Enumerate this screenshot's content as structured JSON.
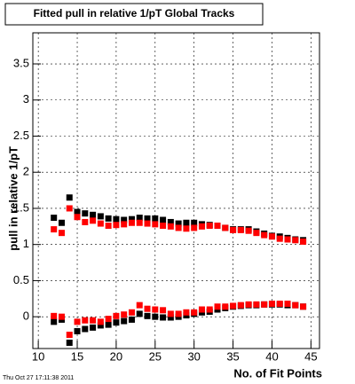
{
  "chart_data": {
    "type": "scatter",
    "title": "Fitted pull in relative 1/pT  Global Tracks",
    "x_label": "No. of Fit Points",
    "y_label": "pull in relative 1/pT",
    "footer": "Thu Oct 27 17:11:38 2011",
    "x": [
      12,
      13,
      14,
      15,
      16,
      17,
      18,
      19,
      20,
      21,
      22,
      23,
      24,
      25,
      26,
      27,
      28,
      29,
      30,
      31,
      32,
      33,
      34,
      35,
      36,
      37,
      38,
      39,
      40,
      41,
      42,
      43,
      44
    ],
    "series": [
      {
        "color": "#000000",
        "values": [
          1.37,
          1.3,
          1.65,
          1.45,
          1.43,
          1.41,
          1.39,
          1.36,
          1.35,
          1.34,
          1.35,
          1.37,
          1.36,
          1.36,
          1.34,
          1.31,
          1.29,
          1.3,
          1.3,
          1.28,
          1.27,
          1.26,
          1.23,
          1.21,
          1.21,
          1.21,
          1.18,
          1.15,
          1.12,
          1.11,
          1.09,
          1.07,
          1.06
        ]
      },
      {
        "color": "#ff0000",
        "values": [
          1.21,
          1.16,
          1.5,
          1.38,
          1.31,
          1.33,
          1.29,
          1.26,
          1.27,
          1.28,
          1.3,
          1.3,
          1.29,
          1.28,
          1.26,
          1.25,
          1.23,
          1.22,
          1.23,
          1.25,
          1.26,
          1.26,
          1.23,
          1.2,
          1.2,
          1.19,
          1.16,
          1.13,
          1.11,
          1.08,
          1.07,
          1.06,
          1.04
        ]
      },
      {
        "color": "#000000",
        "values": [
          -0.07,
          -0.04,
          -0.36,
          -0.2,
          -0.17,
          -0.15,
          -0.12,
          -0.11,
          -0.08,
          -0.06,
          -0.04,
          0.04,
          0.01,
          0.0,
          -0.01,
          -0.01,
          0.0,
          0.02,
          0.04,
          0.06,
          0.07,
          0.1,
          0.12,
          0.14,
          0.15,
          0.16,
          0.16,
          0.17,
          0.17,
          0.17,
          0.16,
          0.16,
          0.14
        ]
      },
      {
        "color": "#ff0000",
        "values": [
          0.01,
          0.0,
          -0.25,
          -0.07,
          -0.05,
          -0.05,
          -0.07,
          -0.03,
          0.01,
          0.03,
          0.06,
          0.16,
          0.11,
          0.1,
          0.09,
          0.04,
          0.04,
          0.06,
          0.06,
          0.1,
          0.1,
          0.14,
          0.14,
          0.15,
          0.16,
          0.17,
          0.17,
          0.17,
          0.18,
          0.18,
          0.18,
          0.16,
          0.14
        ]
      }
    ],
    "xlim": [
      9.3,
      46.1
    ],
    "xticks": [
      10,
      15,
      20,
      25,
      30,
      35,
      40,
      45
    ],
    "ylim": [
      -0.44,
      3.93
    ],
    "yticks": [
      0,
      0.5,
      1,
      1.5,
      2,
      2.5,
      3,
      3.5
    ],
    "grid": true
  }
}
